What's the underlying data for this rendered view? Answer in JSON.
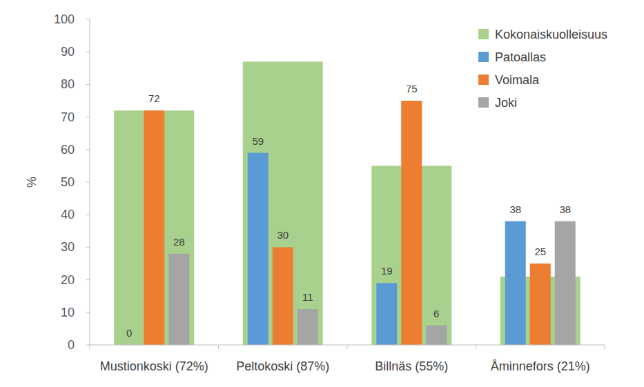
{
  "chart_data": {
    "type": "bar",
    "y_label": "%",
    "categories": [
      "Mustionkoski (72%)",
      "Peltokoski (87%)",
      "Billnäs (55%)",
      "Åminnefors (21%)"
    ],
    "series": [
      {
        "name": "Kokonaiskuolleisuus",
        "color": "#a9d18e",
        "values": [
          72,
          87,
          55,
          21
        ],
        "type": "background",
        "data_labels": false
      },
      {
        "name": "Patoallas",
        "color": "#5b9bd5",
        "values": [
          0,
          59,
          19,
          38
        ],
        "data_labels": true
      },
      {
        "name": "Voimala",
        "color": "#ed7d31",
        "values": [
          72,
          30,
          75,
          25
        ],
        "data_labels": true
      },
      {
        "name": "Joki",
        "color": "#a5a5a5",
        "values": [
          28,
          11,
          6,
          38
        ],
        "data_labels": true
      }
    ],
    "ylim": [
      0,
      100
    ],
    "yticks": [
      0,
      10,
      20,
      30,
      40,
      50,
      60,
      70,
      80,
      90,
      100
    ],
    "grid": false,
    "legend": "top-right"
  }
}
